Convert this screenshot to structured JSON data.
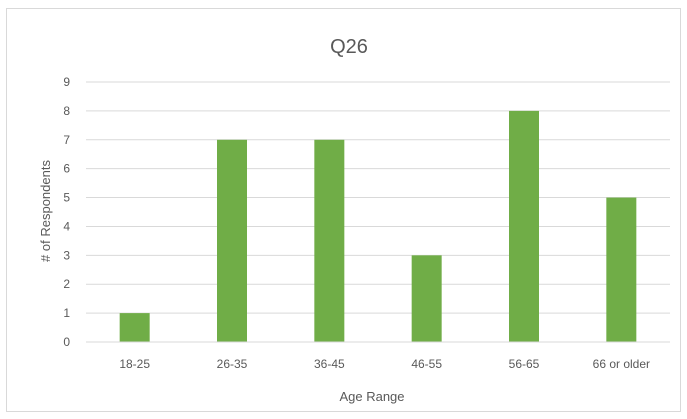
{
  "chart_data": {
    "type": "bar",
    "title": "Q26",
    "xlabel": "Age Range",
    "ylabel": "# of Respondents",
    "categories": [
      "18-25",
      "26-35",
      "36-45",
      "46-55",
      "56-65",
      "66 or older"
    ],
    "values": [
      1,
      7,
      7,
      3,
      8,
      5
    ],
    "ylim": [
      0,
      9
    ],
    "yticks": [
      "0",
      "1",
      "2",
      "3",
      "4",
      "5",
      "6",
      "7",
      "8",
      "9"
    ],
    "grid": true,
    "bar_color": "#70ad47",
    "grid_color": "#d9d9d9",
    "text_color": "#595959"
  }
}
